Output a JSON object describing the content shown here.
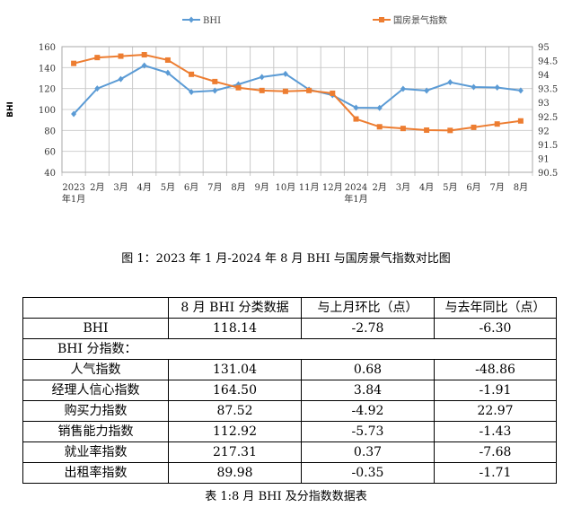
{
  "chart_data": {
    "type": "line",
    "title": "",
    "categories": [
      "2023\n年1月",
      "2月",
      "3月",
      "4月",
      "5月",
      "6月",
      "7月",
      "8月",
      "9月",
      "10月",
      "11月",
      "12月",
      "2024\n年1月",
      "2月",
      "3月",
      "4月",
      "5月",
      "6月",
      "7月",
      "8月"
    ],
    "ylabel": "BHI",
    "ylim": [
      40,
      160
    ],
    "yticks": [
      40,
      60,
      80,
      100,
      120,
      140,
      160
    ],
    "y2lim": [
      90.5,
      95
    ],
    "y2ticks": [
      "90.5",
      "91",
      "91.5",
      "92",
      "92.5",
      "93",
      "93.5",
      "94",
      "94.5",
      "95"
    ],
    "grid": true,
    "legend": "top",
    "series": [
      {
        "name": "BHI",
        "axis": "left",
        "color": "#5B9BD5",
        "marker": "diamond",
        "values": [
          95.7,
          120,
          129,
          142,
          135,
          116.7,
          118,
          124,
          131,
          134,
          119,
          113.7,
          101.7,
          101.5,
          119.7,
          118,
          126,
          121.4,
          121,
          118.14
        ]
      },
      {
        "name": "国房景气指数",
        "axis": "right",
        "color": "#ED7D31",
        "marker": "square",
        "values": [
          94.4,
          94.61,
          94.66,
          94.71,
          94.52,
          94.01,
          93.75,
          93.53,
          93.43,
          93.4,
          93.43,
          93.33,
          92.41,
          92.13,
          92.07,
          92.01,
          92.0,
          92.11,
          92.23,
          92.34
        ]
      }
    ]
  },
  "figure_caption": "图 1：2023 年 1 月-2024 年 8 月 BHI 与国房景气指数对比图",
  "table": {
    "headers": [
      "",
      "8 月 BHI 分类数据",
      "与上月环比（点）",
      "与去年同比（点）"
    ],
    "bhi_row": [
      "BHI",
      "118.14",
      "-2.78",
      "-6.30"
    ],
    "sub_heading": "BHI 分指数：",
    "rows": [
      [
        "人气指数",
        "131.04",
        "0.68",
        "-48.86"
      ],
      [
        "经理人信心指数",
        "164.50",
        "3.84",
        "-1.91"
      ],
      [
        "购买力指数",
        "87.52",
        "-4.92",
        "22.97"
      ],
      [
        "销售能力指数",
        "112.92",
        "-5.73",
        "-1.43"
      ],
      [
        "就业率指数",
        "217.31",
        "0.37",
        "-7.68"
      ],
      [
        "出租率指数",
        "89.98",
        "-0.35",
        "-1.71"
      ]
    ],
    "caption": "表 1:8 月 BHI 及分指数数据表"
  }
}
